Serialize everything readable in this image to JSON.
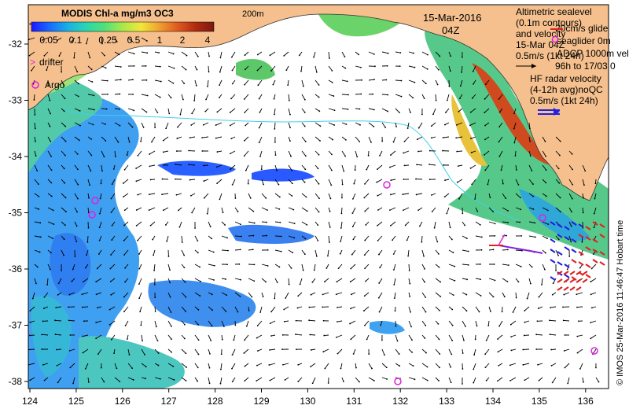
{
  "colorbar": {
    "title": "MODIS Chl-a mg/m3 OC3",
    "ticks": [
      "0.05",
      "0.1",
      "0.25",
      "0.5",
      "1",
      "2",
      "4"
    ],
    "colors": [
      "#1a1aff",
      "#1a6bff",
      "#1ab0e6",
      "#2ad6b0",
      "#4fe07a",
      "#a8e84a",
      "#f0e83a",
      "#f0a030",
      "#e05a20",
      "#b02a10",
      "#7a1a10"
    ]
  },
  "isobath_label": "200m",
  "date": "15-Mar-2016",
  "time": "04Z",
  "legend": {
    "drifter": "drifter",
    "argo": "Argo",
    "altimetry_lines": [
      "Altimetric sealevel",
      "(0.1m contours)",
      "and velocity"
    ],
    "glider_lines": [
      "20cm/s glide",
      "seaglider 0m",
      "15-Mar 04Z",
      "ADCP 1000m vel",
      "0.5m/s (1kt 24h)",
      "96h to 17/03 0"
    ],
    "hf_radar_lines": [
      "HF radar velocity",
      "(4-12h avg)noQC",
      "0.5m/s (1kt 24h)"
    ]
  },
  "axes": {
    "x_ticks": [
      "124",
      "125",
      "126",
      "127",
      "128",
      "129",
      "130",
      "131",
      "132",
      "133",
      "134",
      "135",
      "136"
    ],
    "y_ticks": [
      "-32",
      "-33",
      "-34",
      "-35",
      "-36",
      "-37",
      "-38"
    ]
  },
  "credit": "© IMOS 25-Mar-2016 11:46:47 Hobart time",
  "colors": {
    "land": "#f5c08e",
    "drifter": "#e020e0",
    "argo": "#e020e0",
    "hf_radar": "#2020e0",
    "hf_radar_red": "#e02020",
    "vector": "#000000",
    "glider": "#8020e0"
  }
}
